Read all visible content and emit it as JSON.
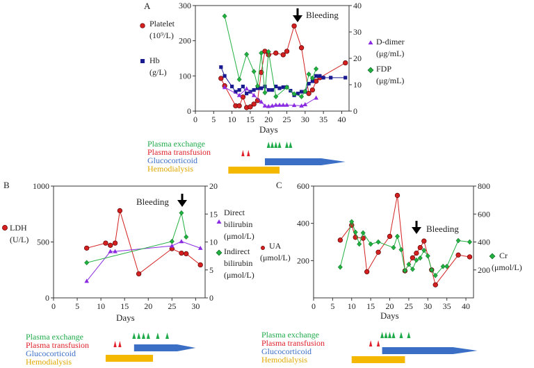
{
  "chart_data": [
    {
      "type": "line",
      "panel": "A",
      "xlabel": "Days",
      "xlim": [
        0,
        42
      ],
      "xticks": [
        0,
        5,
        10,
        15,
        20,
        25,
        30,
        35,
        40
      ],
      "ylim_left": [
        0,
        300
      ],
      "yticks_left": [
        0,
        100,
        200,
        300
      ],
      "ylim_right": [
        0,
        40
      ],
      "yticks_right": [
        0,
        10,
        20,
        30,
        40
      ],
      "annotation": {
        "text": "Bleeding",
        "x": 27
      },
      "series": [
        {
          "name": "Platelet (10⁹/L)",
          "axis": "left",
          "color": "#d42020",
          "marker": "circle",
          "x": [
            7,
            8,
            11,
            12,
            13,
            14,
            15,
            16,
            17,
            18,
            19,
            20,
            22,
            24,
            25,
            27,
            29,
            31,
            32,
            33,
            34,
            41
          ],
          "y": [
            93,
            72,
            15,
            15,
            40,
            10,
            12,
            20,
            30,
            110,
            170,
            160,
            165,
            160,
            170,
            242,
            180,
            50,
            60,
            85,
            95,
            137
          ]
        },
        {
          "name": "Hb (g/L)",
          "axis": "left",
          "color": "#1a1a90",
          "marker": "square",
          "x": [
            7,
            8,
            10,
            11,
            12,
            13,
            14,
            15,
            16,
            17,
            18,
            19,
            20,
            21,
            22,
            23,
            24,
            25,
            26,
            27,
            28,
            29,
            30,
            31,
            32,
            33,
            34,
            35,
            37,
            41
          ],
          "y": [
            125,
            100,
            70,
            55,
            60,
            70,
            50,
            55,
            60,
            65,
            65,
            70,
            60,
            60,
            70,
            65,
            68,
            68,
            58,
            45,
            50,
            55,
            55,
            78,
            85,
            100,
            100,
            95,
            95,
            95
          ]
        },
        {
          "name": "D-dimer (μg/mL)",
          "axis": "right",
          "color": "#8a2be2",
          "marker": "triangle",
          "x": [
            8,
            12,
            14,
            16,
            18,
            19,
            20,
            21,
            22,
            23,
            24,
            25,
            27,
            29,
            30,
            33
          ],
          "y": [
            9,
            6,
            8.5,
            6,
            3.5,
            2,
            1.8,
            2,
            2.3,
            2.3,
            2.3,
            2.3,
            2.2,
            2,
            2.5,
            5
          ]
        },
        {
          "name": "FDP (μg/mL)",
          "axis": "right",
          "color": "#20b040",
          "marker": "diamond",
          "x": [
            8,
            12,
            14,
            16,
            17,
            18,
            19,
            20,
            22,
            25,
            27,
            29,
            30,
            31,
            32,
            33
          ],
          "y": [
            36,
            12,
            21.5,
            15,
            9.5,
            22,
            7,
            22.5,
            5.5,
            9,
            6.5,
            5.5,
            7.5,
            14,
            12.5,
            16
          ]
        }
      ],
      "treatment_legend": [
        "Plasma exchange",
        "Plasma transfusion",
        "Glucocorticoid",
        "Hemodialysis"
      ],
      "treatments": {
        "plasma_exchange_days": [
          20,
          21,
          22,
          23,
          25,
          26
        ],
        "plasma_transfusion_days": [
          13,
          14.5
        ],
        "glucocorticoid": {
          "start": 19,
          "end": 41
        },
        "hemodialysis": {
          "start": 9,
          "end": 23
        }
      }
    },
    {
      "type": "line",
      "panel": "B",
      "xlabel": "Days",
      "xlim": [
        0,
        32
      ],
      "xticks": [
        0,
        5,
        10,
        15,
        20,
        25,
        30
      ],
      "ylim_left": [
        0,
        1000
      ],
      "yticks_left": [
        0,
        500,
        1000
      ],
      "ylim_right": [
        0,
        20
      ],
      "yticks_right": [
        0,
        5,
        10,
        15,
        20
      ],
      "annotation": {
        "text": "Bleeding",
        "x": 27
      },
      "series": [
        {
          "name": "LDH (U/L)",
          "axis": "left",
          "color": "#d42020",
          "marker": "circle",
          "x": [
            7,
            11,
            12,
            13,
            14,
            18,
            25,
            27,
            28,
            31
          ],
          "y": [
            445,
            490,
            470,
            490,
            780,
            215,
            440,
            400,
            395,
            295
          ]
        },
        {
          "name": "Direct bilirubin (μmol/L)",
          "axis": "right",
          "color": "#8a2be2",
          "marker": "triangle",
          "x": [
            7,
            12,
            13,
            25,
            27,
            31
          ],
          "y": [
            3,
            8.3,
            8.3,
            9.3,
            10.1,
            8.9
          ]
        },
        {
          "name": "Indirect bilirubin (μmol/L)",
          "axis": "right",
          "color": "#20b040",
          "marker": "diamond",
          "x": [
            7,
            25,
            27,
            28
          ],
          "y": [
            6.3,
            10.1,
            15.2,
            10.9
          ]
        }
      ],
      "treatment_legend": [
        "Plasma exchange",
        "Plasma transfusion",
        "Glucocorticoid",
        "Hemodialysis"
      ],
      "treatments": {
        "plasma_exchange_days": [
          17,
          18,
          19,
          20,
          22,
          24
        ],
        "plasma_transfusion_days": [
          13,
          14
        ],
        "glucocorticoid": {
          "start": 17,
          "end": 30
        },
        "hemodialysis": {
          "start": 11,
          "end": 21
        }
      }
    },
    {
      "type": "line",
      "panel": "C",
      "xlabel": "Days",
      "xlim": [
        0,
        42
      ],
      "xticks": [
        0,
        5,
        10,
        15,
        20,
        25,
        30,
        35,
        40
      ],
      "ylim_left": [
        0,
        600
      ],
      "yticks_left": [
        200,
        400,
        600
      ],
      "ylim_right": [
        0,
        800
      ],
      "yticks_right": [
        200,
        400,
        600,
        800
      ],
      "annotation": {
        "text": "Bleeding",
        "x": 27
      },
      "series": [
        {
          "name": "UA (μmol/L)",
          "axis": "left",
          "color": "#d42020",
          "marker": "circle",
          "x": [
            7,
            10,
            11,
            13,
            14,
            17,
            20,
            22,
            24,
            26,
            27,
            28,
            29,
            31,
            32,
            38,
            41
          ],
          "y": [
            310,
            390,
            325,
            320,
            140,
            245,
            330,
            550,
            145,
            215,
            240,
            270,
            305,
            150,
            70,
            230,
            220
          ]
        },
        {
          "name": "Cr (μmol/L)",
          "axis": "right",
          "color": "#20b040",
          "marker": "diamond",
          "x": [
            7,
            10,
            11,
            12,
            13,
            15,
            17,
            21,
            22,
            23,
            24,
            25,
            26,
            27,
            28,
            29,
            30,
            31,
            32,
            34,
            35,
            38,
            41
          ],
          "y": [
            220,
            545,
            470,
            385,
            465,
            385,
            400,
            360,
            440,
            345,
            195,
            240,
            205,
            270,
            285,
            340,
            300,
            200,
            160,
            225,
            225,
            410,
            400
          ]
        }
      ],
      "treatment_legend": [
        "Plasma exchange",
        "Plasma transfusion",
        "Glucocorticoid",
        "Hemodialysis"
      ],
      "treatments": {
        "plasma_exchange_days": [
          18,
          19,
          20,
          21,
          23,
          25
        ],
        "plasma_transfusion_days": [
          15,
          17
        ],
        "glucocorticoid": {
          "start": 18,
          "end": 43
        },
        "hemodialysis": {
          "start": 10,
          "end": 24
        }
      }
    }
  ],
  "labels": {
    "panel_a": "A",
    "panel_b": "B",
    "panel_c": "C",
    "days": "Days",
    "bleeding": "Bleeding",
    "platelet_1": "Platelet",
    "platelet_2": "(10⁹/L)",
    "hb_1": "Hb",
    "hb_2": "(g/L)",
    "ddimer_1": "D-dimer",
    "ddimer_2": "(μg/mL)",
    "fdp_1": "FDP",
    "fdp_2": "(μg/mL)",
    "ldh_1": "LDH",
    "ldh_2": "(U/L)",
    "direct_1": "Direct",
    "direct_2": "bilirubin",
    "direct_3": "(μmol/L)",
    "indirect_1": "Indirect",
    "indirect_2": "bilirubin",
    "indirect_3": "(μmol/L)",
    "ua_1": "UA",
    "ua_2": "(μmol/L)",
    "cr_1": "Cr",
    "cr_2": "(μmol/L)",
    "plasma_exchange": "Plasma exchange",
    "plasma_transfusion": "Plasma transfusion",
    "glucocorticoid": "Glucocorticoid",
    "hemodialysis": "Hemodialysis"
  },
  "colors": {
    "platelet": "#d42020",
    "hb": "#1a1a90",
    "ddimer": "#8a2be2",
    "fdp": "#20b040",
    "plasma_exchange": "#1faa4a",
    "plasma_transfusion": "#e0202a",
    "glucocorticoid": "#3b6fc6",
    "hemodialysis": "#f5b800"
  }
}
